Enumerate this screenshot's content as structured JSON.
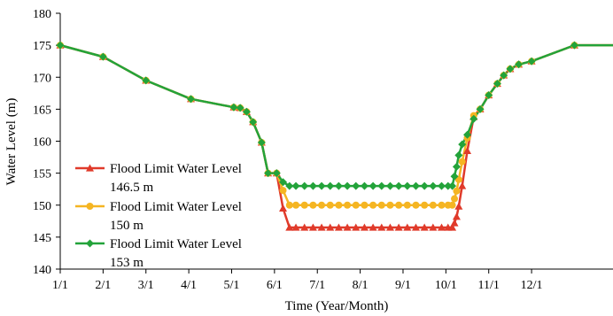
{
  "chart_data": {
    "type": "line",
    "xlabel": "Time (Year/Month)",
    "ylabel": "Water Level (m)",
    "ylim": [
      140,
      180
    ],
    "xlim": [
      0,
      12.9
    ],
    "yticks": [
      140,
      145,
      150,
      155,
      160,
      165,
      170,
      175,
      180
    ],
    "xtick_labels": [
      "1/1",
      "2/1",
      "3/1",
      "4/1",
      "5/1",
      "6/1",
      "7/1",
      "8/1",
      "9/1",
      "10/1",
      "11/1",
      "12/1"
    ],
    "grid": false,
    "legend": {
      "position": "lower-left"
    },
    "series": [
      {
        "name": "Flood Limit Water Level 146.5 m",
        "color": "#e03a2a",
        "marker": "triangle",
        "x": [
          0,
          1.0,
          2.0,
          3.05,
          4.05,
          4.2,
          4.35,
          4.5,
          4.7,
          4.85,
          5.05,
          5.2,
          5.35,
          5.5,
          5.7,
          5.9,
          6.1,
          6.3,
          6.5,
          6.7,
          6.9,
          7.1,
          7.3,
          7.5,
          7.7,
          7.9,
          8.1,
          8.3,
          8.5,
          8.7,
          8.9,
          9.05,
          9.15,
          9.2,
          9.25,
          9.3,
          9.38,
          9.5,
          9.65,
          9.8,
          10.0,
          10.2,
          10.35,
          10.5,
          10.7,
          11.0,
          12.0,
          12.9
        ],
        "y": [
          175,
          173.2,
          169.5,
          166.6,
          165.3,
          165.2,
          164.6,
          163.0,
          159.8,
          155.0,
          155.0,
          149.5,
          146.5,
          146.5,
          146.5,
          146.5,
          146.5,
          146.5,
          146.5,
          146.5,
          146.5,
          146.5,
          146.5,
          146.5,
          146.5,
          146.5,
          146.5,
          146.5,
          146.5,
          146.5,
          146.5,
          146.5,
          146.5,
          147.2,
          148.2,
          149.8,
          153.0,
          158.5,
          163.8,
          165.0,
          167.2,
          169.0,
          170.3,
          171.3,
          172.0,
          172.5,
          175.0,
          175.0
        ]
      },
      {
        "name": "Flood Limit Water Level 150 m",
        "color": "#f5b522",
        "marker": "circle",
        "x": [
          0,
          1.0,
          2.0,
          3.05,
          4.05,
          4.2,
          4.35,
          4.5,
          4.7,
          4.85,
          5.05,
          5.2,
          5.35,
          5.5,
          5.7,
          5.9,
          6.1,
          6.3,
          6.5,
          6.7,
          6.9,
          7.1,
          7.3,
          7.5,
          7.7,
          7.9,
          8.1,
          8.3,
          8.5,
          8.7,
          8.9,
          9.05,
          9.15,
          9.2,
          9.25,
          9.3,
          9.38,
          9.5,
          9.65,
          9.8,
          10.0,
          10.2,
          10.35,
          10.5,
          10.7,
          11.0,
          12.0,
          12.9
        ],
        "y": [
          175,
          173.2,
          169.5,
          166.6,
          165.3,
          165.2,
          164.6,
          163.0,
          159.8,
          155.0,
          155.0,
          152.3,
          150.0,
          150.0,
          150.0,
          150.0,
          150.0,
          150.0,
          150.0,
          150.0,
          150.0,
          150.0,
          150.0,
          150.0,
          150.0,
          150.0,
          150.0,
          150.0,
          150.0,
          150.0,
          150.0,
          150.0,
          150.0,
          151.0,
          152.2,
          154.0,
          156.8,
          160.5,
          164.0,
          165.0,
          167.2,
          169.0,
          170.3,
          171.3,
          172.0,
          172.5,
          175.0,
          175.0
        ]
      },
      {
        "name": "Flood Limit Water Level 153 m",
        "color": "#23a33a",
        "marker": "diamond",
        "x": [
          0,
          1.0,
          2.0,
          3.05,
          4.05,
          4.2,
          4.35,
          4.5,
          4.7,
          4.85,
          5.05,
          5.2,
          5.35,
          5.5,
          5.7,
          5.9,
          6.1,
          6.3,
          6.5,
          6.7,
          6.9,
          7.1,
          7.3,
          7.5,
          7.7,
          7.9,
          8.1,
          8.3,
          8.5,
          8.7,
          8.9,
          9.05,
          9.15,
          9.2,
          9.25,
          9.3,
          9.38,
          9.5,
          9.65,
          9.8,
          10.0,
          10.2,
          10.35,
          10.5,
          10.7,
          11.0,
          12.0,
          12.9
        ],
        "y": [
          175,
          173.2,
          169.5,
          166.6,
          165.3,
          165.2,
          164.6,
          163.0,
          159.8,
          155.0,
          155.0,
          153.6,
          153.0,
          153.0,
          153.0,
          153.0,
          153.0,
          153.0,
          153.0,
          153.0,
          153.0,
          153.0,
          153.0,
          153.0,
          153.0,
          153.0,
          153.0,
          153.0,
          153.0,
          153.0,
          153.0,
          153.0,
          153.0,
          154.5,
          156.0,
          157.8,
          159.5,
          161.0,
          163.5,
          165.0,
          167.2,
          169.0,
          170.3,
          171.3,
          172.0,
          172.5,
          175.0,
          175.0
        ]
      }
    ]
  }
}
